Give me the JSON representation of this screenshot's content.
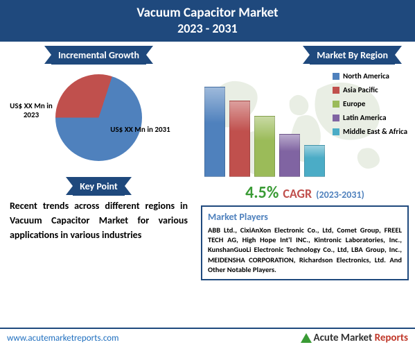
{
  "header": {
    "title": "Vacuum Capacitor Market",
    "years": "2023 - 2031",
    "bg": "#1f497d",
    "fg": "#ffffff"
  },
  "left": {
    "growth_title": "Incremental Growth",
    "pie": {
      "slice1": {
        "pct": 30,
        "color": "#c0504d",
        "label": "US$ XX Mn in 2023"
      },
      "slice2": {
        "pct": 70,
        "color": "#4f81bd",
        "label": "US$ XX Mn in 2031"
      }
    },
    "keypoint_title": "Key Point",
    "keypoint_text": "Recent trends across different regions in Vacuum Capacitor Market for various applications in various industries"
  },
  "right": {
    "region_title": "Market By Region",
    "bars": {
      "values": [
        130,
        110,
        88,
        62,
        46
      ],
      "colors": [
        "#4f81bd",
        "#c0504d",
        "#9bbb59",
        "#8064a2",
        "#4bacc6"
      ],
      "labels": [
        "North America",
        "Asia Pacific",
        "Europe",
        "Latin America",
        "Middle East & Africa"
      ]
    },
    "map_color": "#b7c9a8",
    "cagr": {
      "pct": "4.5%",
      "pct_color": "#3a9b35",
      "word": "CAGR",
      "word_color": "#c0504d",
      "range": "(2023-2031)",
      "range_color": "#4f81bd"
    },
    "players_title": "Market Players",
    "players_title_color": "#4f81bd",
    "players_text": "ABB Ltd., CixiAnXon Electronic Co., Ltd, Comet Group, FREEL TECH AG, High Hope Int'l INC., Kintronic Laboratories, Inc., KunshanGuoLi Electronic Technology Co., Ltd, LBA Group, Inc., MEIDENSHA CORPORATION, Richardson Electronics, Ltd. And Other Notable Players."
  },
  "footer": {
    "url": "www.acutemarketreports.com",
    "logo": {
      "tri_color": "#3a9b35",
      "brand1": "Acute ",
      "brand2": "Market ",
      "brand3": "Reports"
    }
  }
}
